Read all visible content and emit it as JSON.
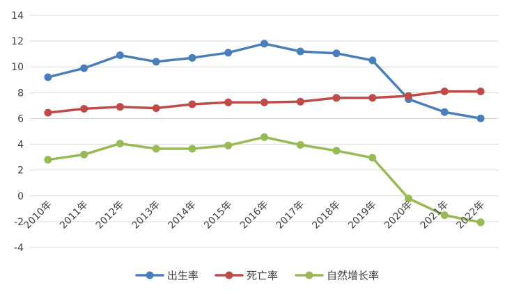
{
  "chart_data": {
    "type": "line",
    "title": "",
    "xlabel": "",
    "ylabel": "",
    "categories": [
      "2010年",
      "2011年",
      "2012年",
      "2013年",
      "2014年",
      "2015年",
      "2016年",
      "2017年",
      "2018年",
      "2019年",
      "2020年",
      "2021年",
      "2022年"
    ],
    "ylim": [
      -4,
      14
    ],
    "yticks": [
      "-4",
      "-2",
      "0",
      "2",
      "4",
      "6",
      "8",
      "10",
      "12",
      "14"
    ],
    "grid": true,
    "legend_position": "bottom",
    "series": [
      {
        "name": "出生率",
        "color": "#4a7ebb",
        "values": [
          9.2,
          9.9,
          10.9,
          10.4,
          10.7,
          11.1,
          11.8,
          11.2,
          11.05,
          10.5,
          7.5,
          6.5,
          6.0
        ]
      },
      {
        "name": "死亡率",
        "color": "#be4b48",
        "values": [
          6.45,
          6.75,
          6.9,
          6.8,
          7.1,
          7.25,
          7.25,
          7.3,
          7.6,
          7.6,
          7.75,
          8.1,
          8.1
        ]
      },
      {
        "name": "自然增长率",
        "color": "#98b954",
        "values": [
          2.8,
          3.2,
          4.05,
          3.65,
          3.65,
          3.9,
          4.55,
          3.95,
          3.5,
          2.95,
          -0.2,
          -1.5,
          -2.05
        ]
      }
    ]
  }
}
